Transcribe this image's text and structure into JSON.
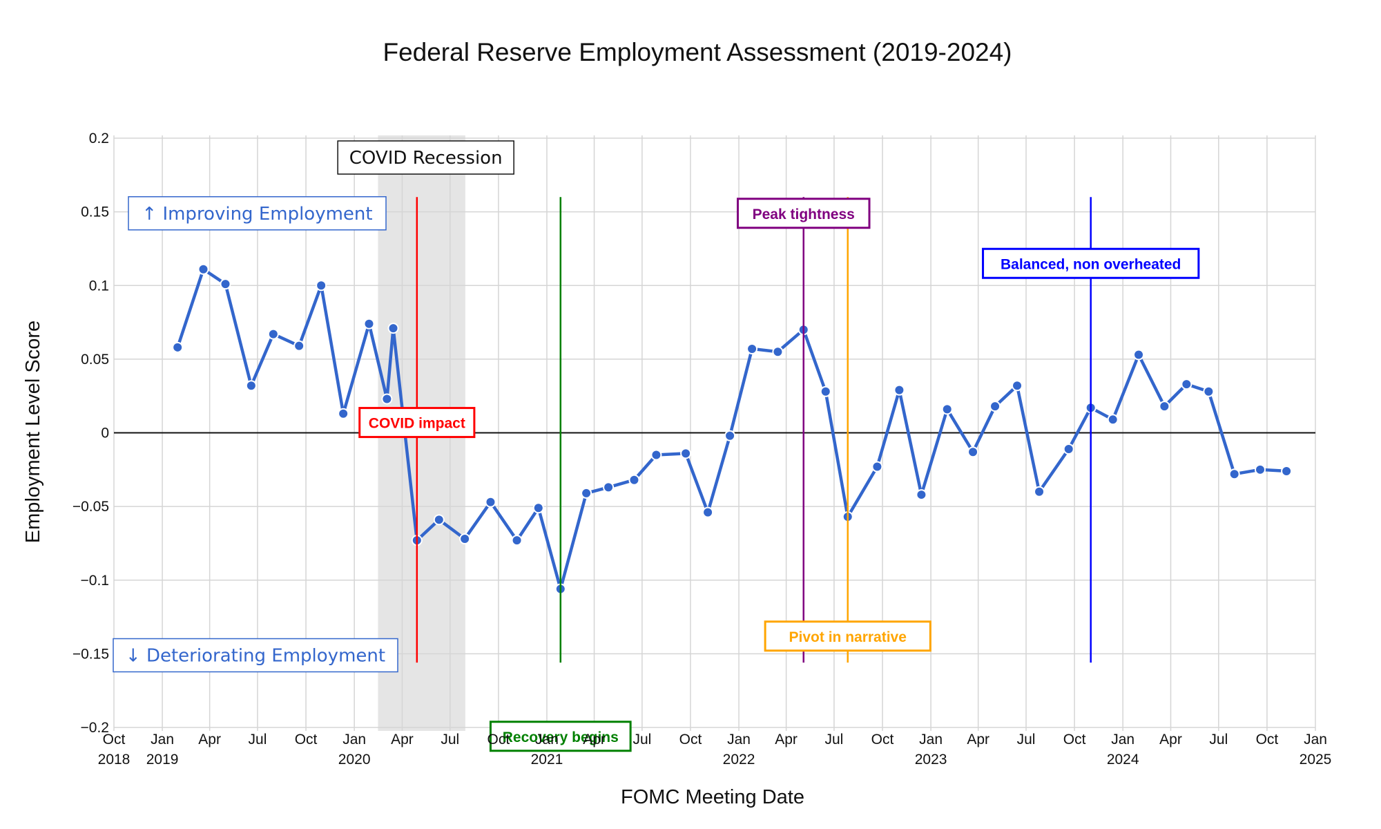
{
  "chart_data": {
    "type": "line",
    "title": "Federal Reserve Employment Assessment (2019-2024)",
    "xlabel": "FOMC Meeting Date",
    "ylabel": "Employment Level Score",
    "xlim": [
      "2018-10-01",
      "2025-01-01"
    ],
    "ylim": [
      -0.2,
      0.2
    ],
    "grid": true,
    "legend": "none",
    "x_ticks": [
      {
        "date": "2018-10-01",
        "label": "Oct",
        "year": "2018"
      },
      {
        "date": "2019-01-01",
        "label": "Jan",
        "year": "2019"
      },
      {
        "date": "2019-04-01",
        "label": "Apr",
        "year": ""
      },
      {
        "date": "2019-07-01",
        "label": "Jul",
        "year": ""
      },
      {
        "date": "2019-10-01",
        "label": "Oct",
        "year": ""
      },
      {
        "date": "2020-01-01",
        "label": "Jan",
        "year": "2020"
      },
      {
        "date": "2020-04-01",
        "label": "Apr",
        "year": ""
      },
      {
        "date": "2020-07-01",
        "label": "Jul",
        "year": ""
      },
      {
        "date": "2020-10-01",
        "label": "Oct",
        "year": ""
      },
      {
        "date": "2021-01-01",
        "label": "Jan",
        "year": "2021"
      },
      {
        "date": "2021-04-01",
        "label": "Apr",
        "year": ""
      },
      {
        "date": "2021-07-01",
        "label": "Jul",
        "year": ""
      },
      {
        "date": "2021-10-01",
        "label": "Oct",
        "year": ""
      },
      {
        "date": "2022-01-01",
        "label": "Jan",
        "year": "2022"
      },
      {
        "date": "2022-04-01",
        "label": "Apr",
        "year": ""
      },
      {
        "date": "2022-07-01",
        "label": "Jul",
        "year": ""
      },
      {
        "date": "2022-10-01",
        "label": "Oct",
        "year": ""
      },
      {
        "date": "2023-01-01",
        "label": "Jan",
        "year": "2023"
      },
      {
        "date": "2023-04-01",
        "label": "Apr",
        "year": ""
      },
      {
        "date": "2023-07-01",
        "label": "Jul",
        "year": ""
      },
      {
        "date": "2023-10-01",
        "label": "Oct",
        "year": ""
      },
      {
        "date": "2024-01-01",
        "label": "Jan",
        "year": "2024"
      },
      {
        "date": "2024-04-01",
        "label": "Apr",
        "year": ""
      },
      {
        "date": "2024-07-01",
        "label": "Jul",
        "year": ""
      },
      {
        "date": "2024-10-01",
        "label": "Oct",
        "year": ""
      },
      {
        "date": "2025-01-01",
        "label": "Jan",
        "year": "2025"
      }
    ],
    "y_ticks": [
      {
        "value": 0.2,
        "label": "0.2"
      },
      {
        "value": 0.15,
        "label": "0.15"
      },
      {
        "value": 0.1,
        "label": "0.1"
      },
      {
        "value": 0.05,
        "label": "0.05"
      },
      {
        "value": 0,
        "label": "0"
      },
      {
        "value": -0.05,
        "label": "−0.05"
      },
      {
        "value": -0.1,
        "label": "−0.1"
      },
      {
        "value": -0.15,
        "label": "−0.15"
      },
      {
        "value": -0.2,
        "label": "−0.2"
      }
    ],
    "series": [
      {
        "color": "#3366cc",
        "points": [
          {
            "x": "2019-01-30",
            "y": 0.058
          },
          {
            "x": "2019-03-20",
            "y": 0.111
          },
          {
            "x": "2019-05-01",
            "y": 0.101
          },
          {
            "x": "2019-06-19",
            "y": 0.032
          },
          {
            "x": "2019-07-31",
            "y": 0.067
          },
          {
            "x": "2019-09-18",
            "y": 0.059
          },
          {
            "x": "2019-10-30",
            "y": 0.1
          },
          {
            "x": "2019-12-11",
            "y": 0.013
          },
          {
            "x": "2020-01-29",
            "y": 0.074
          },
          {
            "x": "2020-03-03",
            "y": 0.023
          },
          {
            "x": "2020-03-15",
            "y": 0.071
          },
          {
            "x": "2020-04-29",
            "y": -0.073
          },
          {
            "x": "2020-06-10",
            "y": -0.059
          },
          {
            "x": "2020-07-29",
            "y": -0.072
          },
          {
            "x": "2020-09-16",
            "y": -0.047
          },
          {
            "x": "2020-11-05",
            "y": -0.073
          },
          {
            "x": "2020-12-16",
            "y": -0.051
          },
          {
            "x": "2021-01-27",
            "y": -0.106
          },
          {
            "x": "2021-03-17",
            "y": -0.041
          },
          {
            "x": "2021-04-28",
            "y": -0.037
          },
          {
            "x": "2021-06-16",
            "y": -0.032
          },
          {
            "x": "2021-07-28",
            "y": -0.015
          },
          {
            "x": "2021-09-22",
            "y": -0.014
          },
          {
            "x": "2021-11-03",
            "y": -0.054
          },
          {
            "x": "2021-12-15",
            "y": -0.002
          },
          {
            "x": "2022-01-26",
            "y": 0.057
          },
          {
            "x": "2022-03-16",
            "y": 0.055
          },
          {
            "x": "2022-05-04",
            "y": 0.07
          },
          {
            "x": "2022-06-15",
            "y": 0.028
          },
          {
            "x": "2022-07-27",
            "y": -0.057
          },
          {
            "x": "2022-09-21",
            "y": -0.023
          },
          {
            "x": "2022-11-02",
            "y": 0.029
          },
          {
            "x": "2022-12-14",
            "y": -0.042
          },
          {
            "x": "2023-02-01",
            "y": 0.016
          },
          {
            "x": "2023-03-22",
            "y": -0.013
          },
          {
            "x": "2023-05-03",
            "y": 0.018
          },
          {
            "x": "2023-06-14",
            "y": 0.032
          },
          {
            "x": "2023-07-26",
            "y": -0.04
          },
          {
            "x": "2023-09-20",
            "y": -0.011
          },
          {
            "x": "2023-11-01",
            "y": 0.017
          },
          {
            "x": "2023-12-13",
            "y": 0.009
          },
          {
            "x": "2024-01-31",
            "y": 0.053
          },
          {
            "x": "2024-03-20",
            "y": 0.018
          },
          {
            "x": "2024-05-01",
            "y": 0.033
          },
          {
            "x": "2024-06-12",
            "y": 0.028
          },
          {
            "x": "2024-07-31",
            "y": -0.028
          },
          {
            "x": "2024-09-18",
            "y": -0.025
          },
          {
            "x": "2024-11-07",
            "y": -0.026
          }
        ]
      }
    ],
    "shaded_regions": [
      {
        "label": "COVID Recession",
        "x0": "2020-02-15",
        "x1": "2020-07-30",
        "color": "#e5e5e5"
      }
    ],
    "event_lines": [
      {
        "x": "2020-04-29",
        "label": "COVID impact",
        "color": "#ff0000",
        "label_y": 0.007
      },
      {
        "x": "2021-01-27",
        "label": "Recovery begins",
        "color": "#008000",
        "label_y": -0.206
      },
      {
        "x": "2022-05-04",
        "label": "Peak tightness",
        "color": "#800080",
        "label_y": 0.149
      },
      {
        "x": "2022-07-27",
        "label": "Pivot in narrative",
        "color": "#ffa500",
        "label_y": -0.138
      },
      {
        "x": "2023-11-01",
        "label": "Balanced, non overheated",
        "color": "#0000ff",
        "label_y": 0.115
      }
    ],
    "side_labels": {
      "top": "↑ Improving Employment",
      "bottom": "↓ Deteriorating Employment"
    }
  }
}
